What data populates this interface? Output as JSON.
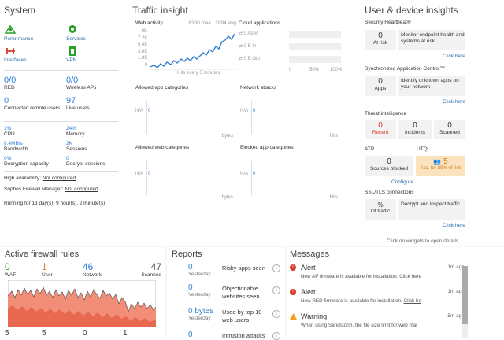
{
  "system": {
    "title": "System",
    "icons": [
      {
        "label": "Performance",
        "icon": "performance-icon"
      },
      {
        "label": "Services",
        "icon": "services-gear-icon"
      },
      {
        "label": "Interfaces",
        "icon": "interfaces-icon"
      },
      {
        "label": "VPN",
        "icon": "vpn-icon"
      }
    ],
    "stats": [
      {
        "value": "0/0",
        "label": "RED"
      },
      {
        "value": "0/0",
        "label": "Wireless APs"
      },
      {
        "value": "0",
        "label": "Connected remote users"
      },
      {
        "value": "97",
        "label": "Live users"
      }
    ],
    "metrics": [
      {
        "value": "1%",
        "label": "CPU"
      },
      {
        "value": "24%",
        "label": "Memory"
      },
      {
        "value": "8.4MB/s",
        "label": "Bandwidth"
      },
      {
        "value": "2K",
        "label": "Sessions"
      },
      {
        "value": "0%",
        "label": "Decryption capacity"
      },
      {
        "value": "0",
        "label": "Decrypt sessions"
      }
    ],
    "ha_label": "High availability:",
    "ha_value": "Not configured",
    "sfm_label": "Sophos Firewall Manager:",
    "sfm_value": "Not configured",
    "running": "Running for 13 day(s), 9 hour(s), 2 minute(s)"
  },
  "traffic": {
    "title": "Traffic insight",
    "web_activity": {
      "title": "Web activity",
      "summary": "8380 max | 2894 avg",
      "y_ticks": [
        "9K",
        "7.2K",
        "5.4K",
        "3.6K",
        "1.8K",
        "0"
      ],
      "footer": "Hits every 5 minutes"
    },
    "cloud": {
      "title": "Cloud applications",
      "rows": [
        "0 Apps",
        "0 B In",
        "0 B Out"
      ],
      "x_ticks": [
        "0",
        "50%",
        "100%"
      ]
    },
    "allowed_app": {
      "title": "Allowed app categories",
      "na": "N/A",
      "zero": "0",
      "unit": "bytes"
    },
    "network_attacks": {
      "title": "Network attacks",
      "na": "N/A",
      "zero": "0",
      "unit": "Hits"
    },
    "allowed_web": {
      "title": "Allowed web categories",
      "na": "N/A",
      "zero": "0",
      "unit": "bytes"
    },
    "blocked_app": {
      "title": "Blocked app categories",
      "na": "N/A",
      "zero": "0",
      "unit": "Hits"
    }
  },
  "insights": {
    "title": "User & device insights",
    "heartbeat": {
      "title": "Security Heartbeat®",
      "value": "0",
      "label": "At risk",
      "desc": "Monitor endpoint health and systems at risk",
      "link": "Click here"
    },
    "sync": {
      "title": "Synchronized Application Control™",
      "value": "0",
      "label": "Apps",
      "desc": "Identify unknown apps on your network",
      "link": "Click here"
    },
    "threat": {
      "title": "Threat intelligence",
      "items": [
        {
          "value": "0",
          "label": "Recent"
        },
        {
          "value": "0",
          "label": "Incidents"
        },
        {
          "value": "0",
          "label": "Scanned"
        }
      ]
    },
    "atp": {
      "title": "ATP",
      "value": "0",
      "label": "Sources blocked",
      "link": "Configure"
    },
    "utq": {
      "title": "UTQ",
      "value": "5",
      "label": "Acc. for 80% of risk"
    },
    "ssl": {
      "title": "SSL/TLS connections",
      "value": "%",
      "label": "Of traffic",
      "desc": "Decrypt and inspect traffic",
      "link": "Click here"
    },
    "hint": "Click on widgets to open details"
  },
  "firewall": {
    "title": "Active firewall rules",
    "stats": [
      {
        "value": "0",
        "label": "WAF",
        "color": "#2aa02a"
      },
      {
        "value": "1",
        "label": "User",
        "color": "#e07a2e"
      },
      {
        "value": "46",
        "label": "Network",
        "color": "#2d7dd2"
      },
      {
        "value": "47",
        "label": "Scanned",
        "color": "#555555"
      }
    ],
    "bottom": [
      "5",
      "5",
      "0",
      "1"
    ]
  },
  "reports": {
    "title": "Reports",
    "items": [
      {
        "value": "0",
        "sub": "Yesterday",
        "label": "Risky apps seen"
      },
      {
        "value": "0",
        "sub": "Yesterday",
        "label": "Objectionable websites seen"
      },
      {
        "value": "0 bytes",
        "sub": "Yesterday",
        "label": "Used by top 10 web users"
      },
      {
        "value": "0",
        "sub": "",
        "label": "Intrusion attacks"
      }
    ]
  },
  "messages": {
    "title": "Messages",
    "items": [
      {
        "type": "Alert",
        "time": "1m ago",
        "text": "New AP firmware is available for installation.",
        "link": "Click here"
      },
      {
        "type": "Alert",
        "time": "1m ago",
        "text": "New RED firmware is available for installation.",
        "link": "Click he"
      },
      {
        "type": "Warning",
        "time": "5m ago",
        "text": "When using Sandstorm, the file size limit for web mal"
      }
    ]
  },
  "colors": {
    "accent": "#2d7dd2",
    "green": "#2aa02a",
    "red": "#d93b2b",
    "orange": "#e07a2e",
    "utq_bg": "#f5a623"
  }
}
